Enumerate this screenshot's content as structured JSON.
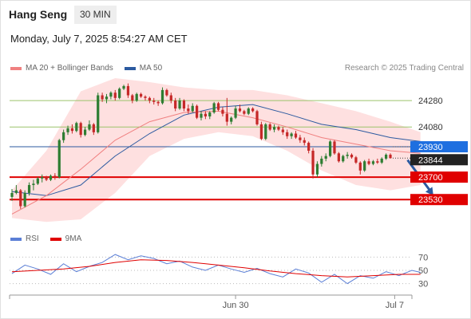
{
  "header": {
    "instrument": "Hang Seng",
    "timeframe": "30 MIN",
    "datetime": "Monday, July 7, 2025 8:54:27 AM CET",
    "credit": "Research © 2025 Trading Central"
  },
  "colors": {
    "bollinger_line": "#f08080",
    "bollinger_band": "#fdd5d5",
    "ma50": "#2c5aa0",
    "support_line": "#e00000",
    "resistance_line": "#9bc36b",
    "pivot_line": "#2c5aa0",
    "candle_up": "#2e7d32",
    "candle_down": "#c62828",
    "rsi": "#5b7fd6",
    "rsi_ma": "#e00000",
    "arrow": "#2c5aa0"
  },
  "chart_data": [
    {
      "type": "candlestick",
      "legend": [
        "MA 20 + Bollinger Bands",
        "MA 50"
      ],
      "legend_placement": "top-left",
      "ylim": [
        23350,
        24450
      ],
      "x_ticks": [
        "Jun 30",
        "Jul 7"
      ],
      "price_levels": [
        {
          "value": 24280,
          "label": "24280",
          "kind": "resistance"
        },
        {
          "value": 24080,
          "label": "24080",
          "kind": "resistance"
        },
        {
          "value": 23930,
          "label": "23930",
          "kind": "pivot"
        },
        {
          "value": 23844,
          "label": "23844",
          "kind": "last"
        },
        {
          "value": 23700,
          "label": "23700",
          "kind": "support"
        },
        {
          "value": 23530,
          "label": "23530",
          "kind": "support"
        }
      ],
      "series": [
        {
          "name": "MA 20 + Bollinger Bands",
          "x": [
            0,
            8,
            16,
            24,
            32,
            40,
            48,
            56,
            64,
            72,
            80,
            88,
            95
          ],
          "values": [
            23420,
            23560,
            23760,
            23980,
            24120,
            24190,
            24200,
            24150,
            24080,
            24000,
            23950,
            23900,
            23880
          ]
        },
        {
          "name": "MA 50",
          "x": [
            0,
            8,
            16,
            24,
            32,
            40,
            48,
            56,
            64,
            72,
            80,
            88,
            95
          ],
          "values": [
            23590,
            23560,
            23640,
            23860,
            24030,
            24170,
            24230,
            24250,
            24180,
            24100,
            24060,
            24000,
            23970
          ]
        }
      ],
      "bollinger_upper": [
        23600,
        23900,
        24350,
        24450,
        24420,
        24380,
        24360,
        24360,
        24320,
        24260,
        24200,
        24120,
        24040
      ],
      "bollinger_lower": [
        23390,
        23360,
        23380,
        23580,
        23860,
        23990,
        24040,
        24010,
        23900,
        23750,
        23640,
        23600,
        23640
      ],
      "candles_ohlc": [
        [
          23550,
          23610,
          23520,
          23580
        ],
        [
          23580,
          23640,
          23570,
          23600
        ],
        [
          23600,
          23610,
          23460,
          23480
        ],
        [
          23480,
          23600,
          23470,
          23580
        ],
        [
          23580,
          23660,
          23560,
          23640
        ],
        [
          23640,
          23680,
          23600,
          23650
        ],
        [
          23650,
          23700,
          23640,
          23690
        ],
        [
          23690,
          23720,
          23660,
          23700
        ],
        [
          23700,
          23710,
          23670,
          23680
        ],
        [
          23680,
          23720,
          23670,
          23710
        ],
        [
          23710,
          23730,
          23680,
          23700
        ],
        [
          23700,
          23990,
          23690,
          23980
        ],
        [
          23980,
          24060,
          23960,
          24040
        ],
        [
          24040,
          24090,
          24020,
          24070
        ],
        [
          24070,
          24100,
          24030,
          24050
        ],
        [
          24050,
          24120,
          24040,
          24110
        ],
        [
          24110,
          24120,
          24000,
          24020
        ],
        [
          24020,
          24080,
          24010,
          24060
        ],
        [
          24060,
          24130,
          24050,
          24100
        ],
        [
          24100,
          24110,
          24020,
          24040
        ],
        [
          24040,
          24340,
          24030,
          24320
        ],
        [
          24320,
          24340,
          24270,
          24290
        ],
        [
          24290,
          24330,
          24260,
          24310
        ],
        [
          24310,
          24350,
          24290,
          24340
        ],
        [
          24340,
          24360,
          24280,
          24300
        ],
        [
          24300,
          24380,
          24290,
          24370
        ],
        [
          24370,
          24400,
          24360,
          24390
        ],
        [
          24390,
          24410,
          24300,
          24320
        ],
        [
          24320,
          24330,
          24260,
          24280
        ],
        [
          24280,
          24340,
          24270,
          24330
        ],
        [
          24330,
          24340,
          24300,
          24310
        ],
        [
          24310,
          24320,
          24280,
          24300
        ],
        [
          24300,
          24310,
          24260,
          24280
        ],
        [
          24280,
          24300,
          24250,
          24270
        ],
        [
          24270,
          24280,
          24240,
          24260
        ],
        [
          24260,
          24380,
          24250,
          24360
        ],
        [
          24360,
          24370,
          24310,
          24320
        ],
        [
          24320,
          24340,
          24260,
          24280
        ],
        [
          24280,
          24300,
          24200,
          24220
        ],
        [
          24220,
          24300,
          24210,
          24280
        ],
        [
          24280,
          24290,
          24200,
          24220
        ],
        [
          24220,
          24250,
          24180,
          24200
        ],
        [
          24200,
          24260,
          24190,
          24240
        ],
        [
          24240,
          24250,
          24140,
          24150
        ],
        [
          24150,
          24200,
          24130,
          24180
        ],
        [
          24180,
          24200,
          24140,
          24160
        ],
        [
          24160,
          24200,
          24140,
          24190
        ],
        [
          24190,
          24270,
          24180,
          24260
        ],
        [
          24260,
          24270,
          24200,
          24210
        ],
        [
          24210,
          24230,
          24160,
          24180
        ],
        [
          24180,
          24300,
          24090,
          24120
        ],
        [
          24120,
          24160,
          24100,
          24150
        ],
        [
          24150,
          24240,
          24140,
          24220
        ],
        [
          24220,
          24250,
          24190,
          24200
        ],
        [
          24200,
          24210,
          24170,
          24180
        ],
        [
          24180,
          24230,
          24170,
          24220
        ],
        [
          24220,
          24230,
          24190,
          24200
        ],
        [
          24200,
          24210,
          24090,
          24100
        ],
        [
          24100,
          24120,
          23980,
          23990
        ],
        [
          23990,
          24110,
          23980,
          24100
        ],
        [
          24100,
          24110,
          24050,
          24060
        ],
        [
          24060,
          24100,
          24040,
          24080
        ],
        [
          24080,
          24090,
          24050,
          24060
        ],
        [
          24060,
          24080,
          24020,
          24040
        ],
        [
          24040,
          24060,
          23990,
          24010
        ],
        [
          24010,
          24040,
          23990,
          24030
        ],
        [
          24030,
          24050,
          23990,
          24000
        ],
        [
          24000,
          24020,
          23960,
          23980
        ],
        [
          23980,
          24000,
          23940,
          23960
        ],
        [
          23960,
          23970,
          23880,
          23900
        ],
        [
          23900,
          23920,
          23690,
          23720
        ],
        [
          23720,
          23820,
          23700,
          23800
        ],
        [
          23800,
          23860,
          23780,
          23840
        ],
        [
          23840,
          23880,
          23820,
          23860
        ],
        [
          23860,
          23980,
          23850,
          23970
        ],
        [
          23970,
          23980,
          23870,
          23880
        ],
        [
          23880,
          23890,
          23810,
          23820
        ],
        [
          23820,
          23870,
          23810,
          23860
        ],
        [
          23860,
          23890,
          23840,
          23870
        ],
        [
          23870,
          23880,
          23840,
          23850
        ],
        [
          23850,
          23860,
          23800,
          23810
        ],
        [
          23810,
          23820,
          23720,
          23750
        ],
        [
          23750,
          23830,
          23740,
          23820
        ],
        [
          23820,
          23840,
          23790,
          23800
        ],
        [
          23800,
          23830,
          23790,
          23820
        ],
        [
          23820,
          23840,
          23800,
          23810
        ],
        [
          23810,
          23850,
          23800,
          23840
        ],
        [
          23840,
          23880,
          23830,
          23870
        ],
        [
          23870,
          23880,
          23840,
          23844
        ]
      ],
      "forecast_arrow": {
        "from": [
          92,
          23830
        ],
        "to": [
          98,
          23560
        ]
      }
    },
    {
      "type": "line",
      "legend": [
        "RSI",
        "9MA"
      ],
      "legend_placement": "top-left",
      "ylim": [
        15,
        85
      ],
      "y_ticks": [
        70,
        50,
        30
      ],
      "series": [
        {
          "name": "RSI",
          "x": [
            0,
            3,
            6,
            9,
            12,
            15,
            18,
            21,
            24,
            27,
            30,
            33,
            36,
            39,
            42,
            45,
            48,
            51,
            54,
            57,
            60,
            63,
            66,
            69,
            72,
            75,
            78,
            81,
            84,
            87,
            90,
            93,
            95
          ],
          "values": [
            45,
            58,
            52,
            44,
            60,
            48,
            56,
            62,
            74,
            66,
            72,
            68,
            60,
            64,
            55,
            50,
            58,
            52,
            47,
            53,
            45,
            40,
            52,
            46,
            32,
            44,
            30,
            42,
            38,
            48,
            42,
            50,
            47
          ]
        },
        {
          "name": "9MA",
          "x": [
            0,
            6,
            12,
            18,
            24,
            30,
            36,
            42,
            48,
            54,
            60,
            66,
            72,
            78,
            84,
            90,
            95
          ],
          "values": [
            48,
            50,
            52,
            56,
            62,
            66,
            65,
            62,
            58,
            54,
            49,
            45,
            42,
            40,
            42,
            44,
            44
          ]
        }
      ]
    }
  ]
}
